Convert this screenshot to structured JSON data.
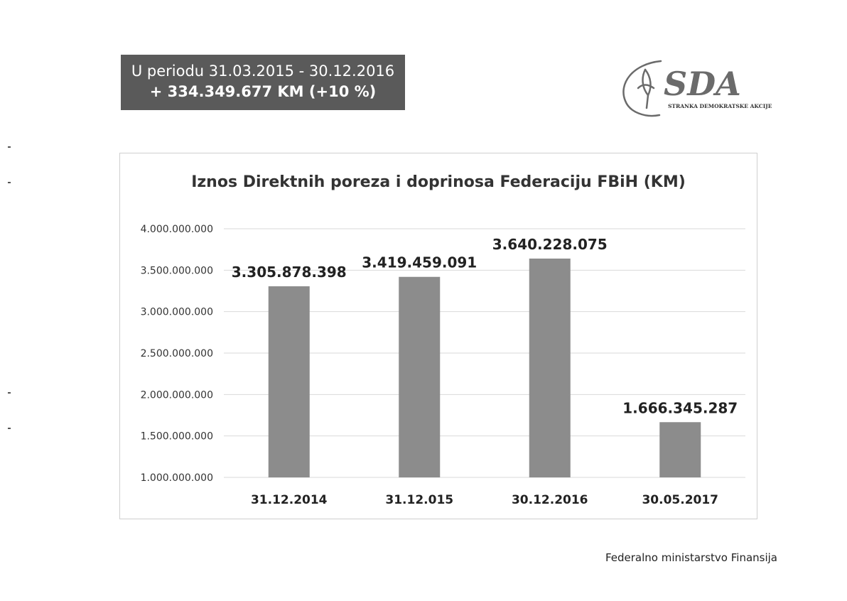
{
  "summary": {
    "period": "U periodu 31.03.2015 - 30.12.2016",
    "change": "+ 334.349.677 KM (+10 %)"
  },
  "logo": {
    "name": "SDA",
    "subtitle": "STRANKA DEMOKRATSKE AKCIJE"
  },
  "source": "Federalno ministarstvo Finansija",
  "colors": {
    "bar": "#8c8c8c",
    "summary_bg": "#5a5a5a",
    "gridline": "#d9d9d9",
    "logo": "#6b6b6b"
  },
  "chart_data": {
    "type": "bar",
    "title": "Iznos Direktnih poreza i doprinosa Federaciju FBiH (KM)",
    "categories": [
      "31.12.2014",
      "31.12.015",
      "30.12.2016",
      "30.05.2017"
    ],
    "values": [
      3305878398,
      3419459091,
      3640228075,
      1666345287
    ],
    "data_labels": [
      "3.305.878.398",
      "3.419.459.091",
      "3.640.228.075",
      "1.666.345.287"
    ],
    "ylim": [
      1000000000,
      4000000000
    ],
    "yticks": [
      1000000000,
      1500000000,
      2000000000,
      2500000000,
      3000000000,
      3500000000,
      4000000000
    ],
    "ytick_labels": [
      "1.000.000.000",
      "1.500.000.000",
      "2.000.000.000",
      "2.500.000.000",
      "3.000.000.000",
      "3.500.000.000",
      "4.000.000.000"
    ],
    "grid": true,
    "legend": "none"
  }
}
